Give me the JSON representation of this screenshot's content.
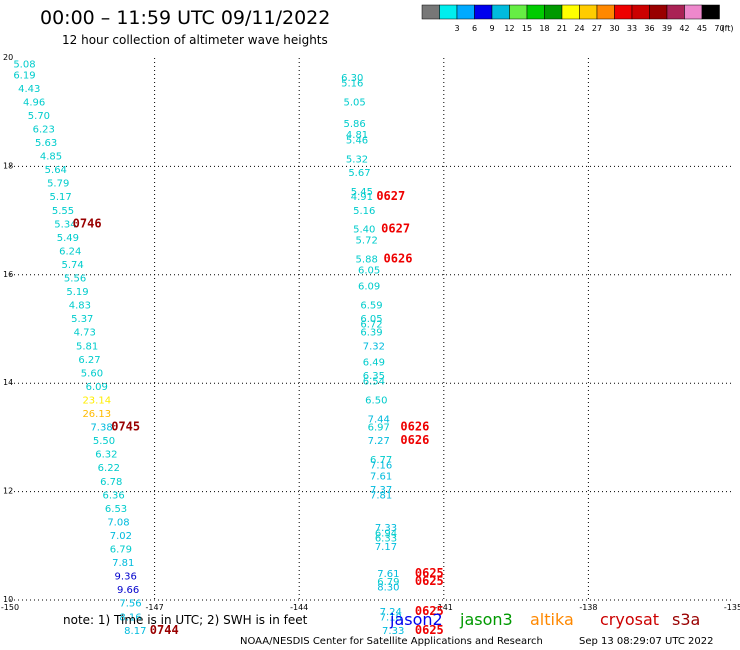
{
  "header": {
    "title": "00:00 – 11:59 UTC 09/11/2022",
    "subtitle": "12 hour collection of altimeter wave heights"
  },
  "legend": {
    "swatches": [
      {
        "label": "",
        "color": "#777777"
      },
      {
        "label": "3",
        "color": "#00eeee"
      },
      {
        "label": "6",
        "color": "#00aaff"
      },
      {
        "label": "9",
        "color": "#0000ee"
      },
      {
        "label": "12",
        "color": "#00bbdd"
      },
      {
        "label": "15",
        "color": "#66ee44"
      },
      {
        "label": "18",
        "color": "#00cc00"
      },
      {
        "label": "21",
        "color": "#009900"
      },
      {
        "label": "24",
        "color": "#ffff00"
      },
      {
        "label": "27",
        "color": "#ffcc00"
      },
      {
        "label": "30",
        "color": "#ff8800"
      },
      {
        "label": "33",
        "color": "#ee0000"
      },
      {
        "label": "36",
        "color": "#cc0000"
      },
      {
        "label": "39",
        "color": "#990000"
      },
      {
        "label": "42",
        "color": "#aa2255"
      },
      {
        "label": "45",
        "color": "#ee88cc"
      },
      {
        "label": "70",
        "color": "#000000"
      }
    ],
    "unit": "(ft)"
  },
  "chart_data": {
    "type": "scatter",
    "xlim": [
      -150,
      -135
    ],
    "ylim": [
      10,
      20
    ],
    "x_ticks": [
      "-150",
      "-147",
      "-144",
      "-141",
      "-138",
      "-135"
    ],
    "y_ticks": [
      "10",
      "12",
      "14",
      "16",
      "18",
      "20"
    ],
    "grid": true,
    "points": [
      {
        "x": -149.7,
        "y": 19.9,
        "v": "5.08",
        "c": "#00cccc"
      },
      {
        "x": -149.7,
        "y": 19.7,
        "v": "6.19",
        "c": "#00cccc"
      },
      {
        "x": -149.6,
        "y": 19.45,
        "v": "4.43",
        "c": "#00cccc"
      },
      {
        "x": -149.5,
        "y": 19.2,
        "v": "4.96",
        "c": "#00cccc"
      },
      {
        "x": -149.4,
        "y": 18.95,
        "v": "5.70",
        "c": "#00cccc"
      },
      {
        "x": -149.3,
        "y": 18.7,
        "v": "6.23",
        "c": "#00cccc"
      },
      {
        "x": -149.25,
        "y": 18.45,
        "v": "5.63",
        "c": "#00cccc"
      },
      {
        "x": -149.15,
        "y": 18.2,
        "v": "4.85",
        "c": "#00cccc"
      },
      {
        "x": -149.05,
        "y": 17.95,
        "v": "5.64",
        "c": "#00cccc"
      },
      {
        "x": -149.0,
        "y": 17.7,
        "v": "5.79",
        "c": "#00cccc"
      },
      {
        "x": -148.95,
        "y": 17.45,
        "v": "5.17",
        "c": "#00cccc"
      },
      {
        "x": -148.9,
        "y": 17.2,
        "v": "5.55",
        "c": "#00cccc"
      },
      {
        "x": -148.85,
        "y": 16.95,
        "v": "5.34",
        "c": "#00cccc"
      },
      {
        "x": -148.8,
        "y": 16.7,
        "v": "5.49",
        "c": "#00cccc"
      },
      {
        "x": -148.75,
        "y": 16.45,
        "v": "6.24",
        "c": "#00cccc"
      },
      {
        "x": -148.7,
        "y": 16.2,
        "v": "5.74",
        "c": "#00cccc"
      },
      {
        "x": -148.65,
        "y": 15.95,
        "v": "5.56",
        "c": "#00cccc"
      },
      {
        "x": -148.6,
        "y": 15.7,
        "v": "5.19",
        "c": "#00cccc"
      },
      {
        "x": -148.55,
        "y": 15.45,
        "v": "4.83",
        "c": "#00cccc"
      },
      {
        "x": -148.5,
        "y": 15.2,
        "v": "5.37",
        "c": "#00cccc"
      },
      {
        "x": -148.45,
        "y": 14.95,
        "v": "4.73",
        "c": "#00cccc"
      },
      {
        "x": -148.4,
        "y": 14.7,
        "v": "5.81",
        "c": "#00cccc"
      },
      {
        "x": -148.35,
        "y": 14.45,
        "v": "6.27",
        "c": "#00cccc"
      },
      {
        "x": -148.3,
        "y": 14.2,
        "v": "5.60",
        "c": "#00cccc"
      },
      {
        "x": -148.2,
        "y": 13.95,
        "v": "6.09",
        "c": "#00cccc"
      },
      {
        "x": -148.2,
        "y": 13.7,
        "v": "23.14",
        "c": "#ffee00"
      },
      {
        "x": -148.2,
        "y": 13.45,
        "v": "26.13",
        "c": "#ffbb00"
      },
      {
        "x": -148.1,
        "y": 13.2,
        "v": "7.38",
        "c": "#00bbdd"
      },
      {
        "x": -148.05,
        "y": 12.95,
        "v": "5.50",
        "c": "#00cccc"
      },
      {
        "x": -148.0,
        "y": 12.7,
        "v": "6.32",
        "c": "#00cccc"
      },
      {
        "x": -147.95,
        "y": 12.45,
        "v": "6.22",
        "c": "#00cccc"
      },
      {
        "x": -147.9,
        "y": 12.2,
        "v": "6.78",
        "c": "#00cccc"
      },
      {
        "x": -147.85,
        "y": 11.95,
        "v": "6.36",
        "c": "#00cccc"
      },
      {
        "x": -147.8,
        "y": 11.7,
        "v": "6.53",
        "c": "#00cccc"
      },
      {
        "x": -147.75,
        "y": 11.45,
        "v": "7.08",
        "c": "#00bbdd"
      },
      {
        "x": -147.7,
        "y": 11.2,
        "v": "7.02",
        "c": "#00bbdd"
      },
      {
        "x": -147.7,
        "y": 10.95,
        "v": "6.79",
        "c": "#00cccc"
      },
      {
        "x": -147.65,
        "y": 10.7,
        "v": "7.81",
        "c": "#00bbdd"
      },
      {
        "x": -147.6,
        "y": 10.45,
        "v": "9.36",
        "c": "#0000cc"
      },
      {
        "x": -147.55,
        "y": 10.2,
        "v": "9.66",
        "c": "#0000cc"
      },
      {
        "x": -147.5,
        "y": 9.95,
        "v": "7.56",
        "c": "#00bbdd"
      },
      {
        "x": -147.5,
        "y": 9.7,
        "v": "8.16",
        "c": "#00bbdd"
      },
      {
        "x": -147.4,
        "y": 9.45,
        "v": "8.17",
        "c": "#00bbdd"
      },
      {
        "x": -142.9,
        "y": 19.65,
        "v": "6.30",
        "c": "#00cccc"
      },
      {
        "x": -142.9,
        "y": 19.55,
        "v": "5.16",
        "c": "#00cccc"
      },
      {
        "x": -142.85,
        "y": 19.2,
        "v": "5.05",
        "c": "#00cccc"
      },
      {
        "x": -142.85,
        "y": 18.8,
        "v": "5.86",
        "c": "#00cccc"
      },
      {
        "x": -142.8,
        "y": 18.6,
        "v": "4.81",
        "c": "#00cccc"
      },
      {
        "x": -142.8,
        "y": 18.5,
        "v": "5.46",
        "c": "#00cccc"
      },
      {
        "x": -142.8,
        "y": 18.15,
        "v": "5.32",
        "c": "#00cccc"
      },
      {
        "x": -142.75,
        "y": 17.9,
        "v": "5.67",
        "c": "#00cccc"
      },
      {
        "x": -142.7,
        "y": 17.55,
        "v": "5.45",
        "c": "#00cccc"
      },
      {
        "x": -142.7,
        "y": 17.45,
        "v": "4.91",
        "c": "#00cccc"
      },
      {
        "x": -142.65,
        "y": 17.2,
        "v": "5.16",
        "c": "#00cccc"
      },
      {
        "x": -142.65,
        "y": 16.85,
        "v": "5.40",
        "c": "#00cccc"
      },
      {
        "x": -142.6,
        "y": 16.65,
        "v": "5.72",
        "c": "#00cccc"
      },
      {
        "x": -142.6,
        "y": 16.3,
        "v": "5.88",
        "c": "#00cccc"
      },
      {
        "x": -142.55,
        "y": 16.1,
        "v": "6.05",
        "c": "#00cccc"
      },
      {
        "x": -142.55,
        "y": 15.8,
        "v": "6.09",
        "c": "#00cccc"
      },
      {
        "x": -142.5,
        "y": 15.45,
        "v": "6.59",
        "c": "#00cccc"
      },
      {
        "x": -142.5,
        "y": 15.2,
        "v": "6.05",
        "c": "#00cccc"
      },
      {
        "x": -142.5,
        "y": 15.1,
        "v": "6.72",
        "c": "#00cccc"
      },
      {
        "x": -142.5,
        "y": 14.95,
        "v": "6.39",
        "c": "#00cccc"
      },
      {
        "x": -142.45,
        "y": 14.7,
        "v": "7.32",
        "c": "#00bbdd"
      },
      {
        "x": -142.45,
        "y": 14.4,
        "v": "6.49",
        "c": "#00cccc"
      },
      {
        "x": -142.45,
        "y": 14.15,
        "v": "6.35",
        "c": "#00cccc"
      },
      {
        "x": -142.45,
        "y": 14.05,
        "v": "6.54",
        "c": "#00cccc"
      },
      {
        "x": -142.4,
        "y": 13.7,
        "v": "6.50",
        "c": "#00cccc"
      },
      {
        "x": -142.35,
        "y": 13.35,
        "v": "7.44",
        "c": "#00bbdd"
      },
      {
        "x": -142.35,
        "y": 13.2,
        "v": "6.97",
        "c": "#00cccc"
      },
      {
        "x": -142.35,
        "y": 12.95,
        "v": "7.27",
        "c": "#00bbdd"
      },
      {
        "x": -142.3,
        "y": 12.6,
        "v": "6.77",
        "c": "#00cccc"
      },
      {
        "x": -142.3,
        "y": 12.5,
        "v": "7.16",
        "c": "#00bbdd"
      },
      {
        "x": -142.3,
        "y": 12.3,
        "v": "7.61",
        "c": "#00bbdd"
      },
      {
        "x": -142.3,
        "y": 12.05,
        "v": "7.37",
        "c": "#00bbdd"
      },
      {
        "x": -142.3,
        "y": 11.95,
        "v": "7.81",
        "c": "#00bbdd"
      },
      {
        "x": -142.2,
        "y": 11.35,
        "v": "7.33",
        "c": "#00bbdd"
      },
      {
        "x": -142.2,
        "y": 11.25,
        "v": "6.94",
        "c": "#00cccc"
      },
      {
        "x": -142.2,
        "y": 11.15,
        "v": "6.33",
        "c": "#00cccc"
      },
      {
        "x": -142.2,
        "y": 11.0,
        "v": "7.17",
        "c": "#00bbdd"
      },
      {
        "x": -142.15,
        "y": 10.5,
        "v": "7.61",
        "c": "#00bbdd"
      },
      {
        "x": -142.15,
        "y": 10.35,
        "v": "6.79",
        "c": "#00cccc"
      },
      {
        "x": -142.15,
        "y": 10.25,
        "v": "8.30",
        "c": "#00bbdd"
      },
      {
        "x": -142.1,
        "y": 9.8,
        "v": "7.24",
        "c": "#00bbdd"
      },
      {
        "x": -142.1,
        "y": 9.7,
        "v": "7.18",
        "c": "#00bbdd"
      },
      {
        "x": -142.05,
        "y": 9.45,
        "v": "7.33",
        "c": "#00bbdd"
      }
    ],
    "time_labels": [
      {
        "x": -148.4,
        "y": 16.95,
        "t": "0746",
        "c": "#990000"
      },
      {
        "x": -147.6,
        "y": 13.2,
        "t": "0745",
        "c": "#990000"
      },
      {
        "x": -146.8,
        "y": 9.45,
        "t": "0744",
        "c": "#990000"
      },
      {
        "x": -142.1,
        "y": 17.45,
        "t": "0627",
        "c": "#ee0000"
      },
      {
        "x": -142.0,
        "y": 16.85,
        "t": "0627",
        "c": "#ee0000"
      },
      {
        "x": -141.95,
        "y": 16.3,
        "t": "0626",
        "c": "#ee0000"
      },
      {
        "x": -141.6,
        "y": 13.2,
        "t": "0626",
        "c": "#ee0000"
      },
      {
        "x": -141.6,
        "y": 12.95,
        "t": "0626",
        "c": "#ee0000"
      },
      {
        "x": -141.3,
        "y": 10.5,
        "t": "0625",
        "c": "#ee0000"
      },
      {
        "x": -141.3,
        "y": 10.35,
        "t": "0625",
        "c": "#ee0000"
      },
      {
        "x": -141.3,
        "y": 9.8,
        "t": "0625",
        "c": "#ee0000"
      },
      {
        "x": -141.3,
        "y": 9.45,
        "t": "0625",
        "c": "#ee0000"
      }
    ]
  },
  "note": "note:  1) Time is in UTC; 2) SWH is in feet",
  "satellites": [
    {
      "name": "jason2",
      "color": "#0000ee"
    },
    {
      "name": "jason3",
      "color": "#009900"
    },
    {
      "name": "altika",
      "color": "#ff8800"
    },
    {
      "name": "cryosat",
      "color": "#cc0000"
    },
    {
      "name": "s3a",
      "color": "#990000"
    }
  ],
  "footer": {
    "credit": "NOAA/NESDIS Center for Satellite Applications and Research",
    "timestamp": "Sep 13 08:29:07 UTC 2022"
  }
}
